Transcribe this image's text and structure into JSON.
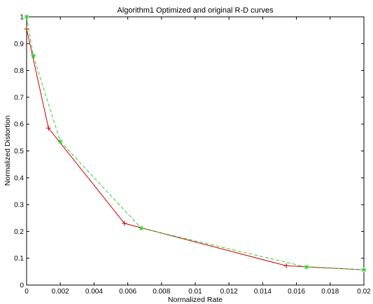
{
  "chart_data": {
    "type": "line",
    "title": "Algorithm1 Optimized and original R-D curves",
    "xlabel": "Normalized Rate",
    "ylabel": "Normalized Distortion",
    "xlim": [
      0,
      0.02
    ],
    "ylim": [
      0,
      1
    ],
    "xticks": [
      "0",
      "0.002",
      "0.004",
      "0.006",
      "0.008",
      "0.01",
      "0.012",
      "0.014",
      "0.016",
      "0.018",
      "0.02"
    ],
    "yticks": [
      "0",
      "0.1",
      "0.2",
      "0.3",
      "0.4",
      "0.5",
      "0.6",
      "0.7",
      "0.8",
      "0.9",
      "1"
    ],
    "grid": false,
    "series": [
      {
        "color": "#cc0000",
        "line_style": "solid",
        "marker": "plus",
        "x": [
          0.0,
          0.0013,
          0.0058,
          0.0154,
          0.02
        ],
        "y": [
          0.955,
          0.585,
          0.23,
          0.072,
          0.057
        ]
      },
      {
        "color": "#33cc33",
        "line_style": "dashed",
        "marker": "star",
        "x": [
          0.0,
          0.0004,
          0.002,
          0.0068,
          0.0166,
          0.02
        ],
        "y": [
          1.0,
          0.855,
          0.535,
          0.212,
          0.067,
          0.057
        ]
      }
    ]
  }
}
